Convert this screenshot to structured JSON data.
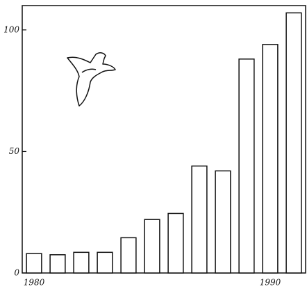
{
  "chart_data": {
    "type": "bar",
    "categories": [
      "1980",
      null,
      null,
      null,
      null,
      null,
      null,
      null,
      null,
      null,
      "1990",
      null
    ],
    "values": [
      8,
      7.5,
      8.5,
      8.5,
      14.5,
      22,
      24.5,
      44,
      42,
      88,
      94,
      107
    ],
    "color": "#ffffff",
    "ylim": [
      0,
      110
    ],
    "yticks": [
      0,
      50,
      100
    ],
    "grid": false
  }
}
